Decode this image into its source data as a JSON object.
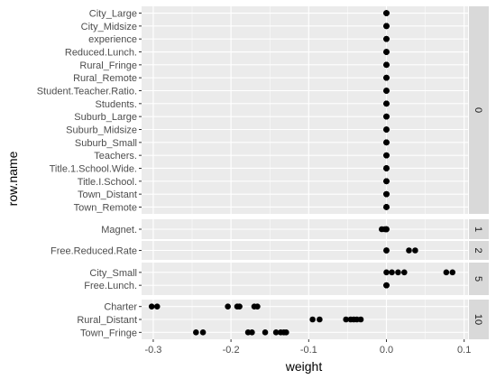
{
  "chart_data": {
    "type": "scatter",
    "title": "",
    "xlabel": "weight",
    "ylabel": "row.name",
    "xlim": [
      -0.315,
      0.105
    ],
    "xticks": [
      -0.3,
      -0.2,
      -0.1,
      0.0,
      0.1
    ],
    "xtick_labels": [
      "-0.3",
      "-0.2",
      "-0.1",
      "0.0",
      "0.1"
    ],
    "grid": true,
    "legend": "none",
    "colors": {
      "panel_bg": "#ebebeb",
      "grid_major": "#ffffff",
      "strip_bg": "#d9d9d9",
      "point": "#000000",
      "tick_text": "#4d4d4d"
    },
    "facets": [
      {
        "label": "0",
        "rows": [
          {
            "name": "Town_Remote",
            "values": [
              0.0,
              0.0,
              0.0,
              0.0,
              0.0
            ]
          },
          {
            "name": "Town_Distant",
            "values": [
              0.0,
              0.0,
              0.0,
              0.0,
              0.0
            ]
          },
          {
            "name": "Title.I.School.",
            "values": [
              0.0,
              0.0,
              0.0,
              0.0,
              0.0
            ]
          },
          {
            "name": "Title.1.School.Wide.",
            "values": [
              0.0,
              0.0,
              0.0,
              0.0,
              0.0
            ]
          },
          {
            "name": "Teachers.",
            "values": [
              0.0,
              0.0,
              0.0,
              0.0,
              0.0
            ]
          },
          {
            "name": "Suburb_Small",
            "values": [
              0.0,
              0.0,
              0.0,
              0.0,
              0.0
            ]
          },
          {
            "name": "Suburb_Midsize",
            "values": [
              0.0,
              0.0,
              0.0,
              0.0,
              0.0
            ]
          },
          {
            "name": "Suburb_Large",
            "values": [
              0.0,
              0.0,
              0.0,
              0.0,
              0.0
            ]
          },
          {
            "name": "Students.",
            "values": [
              0.0,
              0.0,
              0.0,
              0.0,
              0.0
            ]
          },
          {
            "name": "Student.Teacher.Ratio.",
            "values": [
              0.0,
              0.0,
              0.0,
              0.0,
              0.0
            ]
          },
          {
            "name": "Rural_Remote",
            "values": [
              0.0,
              0.0,
              0.0,
              0.0,
              0.0
            ]
          },
          {
            "name": "Rural_Fringe",
            "values": [
              0.0,
              0.0,
              0.0,
              0.0,
              0.0
            ]
          },
          {
            "name": "Reduced.Lunch.",
            "values": [
              0.0,
              0.0,
              0.0,
              0.0,
              0.0
            ]
          },
          {
            "name": "experience",
            "values": [
              0.0,
              0.0,
              0.0,
              0.0,
              0.0
            ]
          },
          {
            "name": "City_Midsize",
            "values": [
              0.0,
              0.0,
              0.0,
              0.0,
              0.0
            ]
          },
          {
            "name": "City_Large",
            "values": [
              0.0,
              0.0,
              0.0,
              0.0,
              0.0
            ]
          }
        ]
      },
      {
        "label": "1",
        "rows": [
          {
            "name": "Magnet.",
            "values": [
              -0.006,
              -0.002,
              0.0,
              0.0,
              0.0
            ]
          }
        ]
      },
      {
        "label": "2",
        "rows": [
          {
            "name": "Free.Reduced.Rate",
            "values": [
              0.0,
              0.0,
              0.0,
              0.029,
              0.037
            ]
          }
        ]
      },
      {
        "label": "5",
        "rows": [
          {
            "name": "Free.Lunch.",
            "values": [
              0.0,
              0.0,
              0.0,
              0.0,
              0.0
            ]
          },
          {
            "name": "City_Small",
            "values": [
              0.0,
              0.007,
              0.015,
              0.023,
              0.077,
              0.085
            ]
          }
        ]
      },
      {
        "label": "10",
        "rows": [
          {
            "name": "Town_Fringe",
            "values": [
              -0.245,
              -0.236,
              -0.178,
              -0.173,
              -0.156,
              -0.142,
              -0.136,
              -0.132,
              -0.129
            ]
          },
          {
            "name": "Rural_Distant",
            "values": [
              -0.095,
              -0.086,
              -0.052,
              -0.046,
              -0.042,
              -0.038,
              -0.033
            ]
          },
          {
            "name": "Charter",
            "values": [
              -0.302,
              -0.295,
              -0.204,
              -0.192,
              -0.189,
              -0.17,
              -0.166
            ]
          }
        ]
      }
    ]
  }
}
